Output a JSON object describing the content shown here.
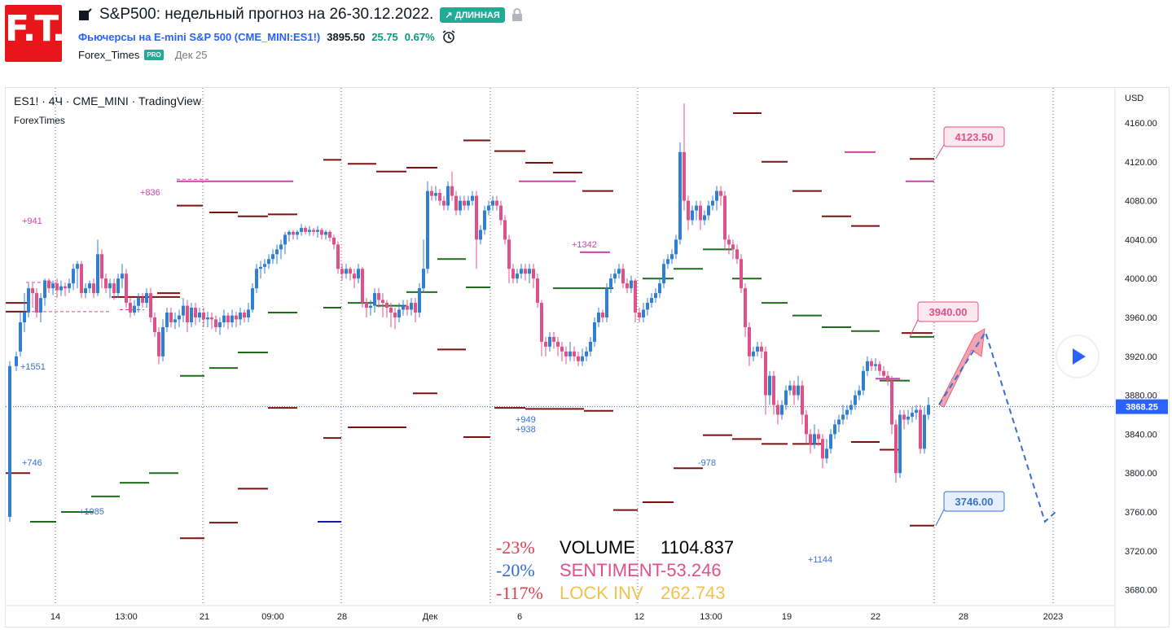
{
  "header": {
    "logo_text": "F.T.",
    "title": "S&P500: недельный прогноз на 26-30.12.2022.",
    "badge": "↗ ДЛИННАЯ",
    "instrument": "Фьючерсы на E-mini S&P 500 (CME_MINI:ES1!)",
    "price": "3895.50",
    "change": "25.75",
    "change_pct": "0.67%",
    "author": "Forex_Times",
    "author_badge": "PRO",
    "date": "Дек 25"
  },
  "chart_data": {
    "type": "candlestick",
    "title": "ES1! · 4Ч · CME_MINI · TradingView",
    "subtitle": "ForexTimes",
    "currency": "USD",
    "y_ticks": [
      "4160.00",
      "4120.00",
      "4080.00",
      "4040.00",
      "4000.00",
      "3960.00",
      "3920.00",
      "3880.00",
      "3840.00",
      "3800.00",
      "3760.00",
      "3720.00",
      "3680.00"
    ],
    "x_ticks": [
      "14",
      "13:00",
      "21",
      "09:00",
      "28",
      "Дек",
      "6",
      "12",
      "13:00",
      "19",
      "22",
      "28",
      "2023"
    ],
    "last_price_label": "3868.25",
    "target_labels": [
      "4123.50",
      "3940.00",
      "3746.00"
    ],
    "volume_annotations": [
      "+941",
      "+836",
      "+1551",
      "+746",
      "+1085",
      "+1342",
      "+949",
      "+938",
      "-978",
      "+1144"
    ],
    "stats": [
      {
        "pct": "-23%",
        "name": "VOLUME",
        "value": "1104.837",
        "pct_color": "#e03d4f",
        "name_color": "#000000",
        "value_color": "#000000"
      },
      {
        "pct": "-20%",
        "name": "SENTIMENT",
        "value": "-53.246",
        "pct_color": "#2f6bd6",
        "name_color": "#e0508a",
        "value_color": "#e0508a"
      },
      {
        "pct": "-117%",
        "name": "LOCK INV",
        "value": "262.743",
        "pct_color": "#e03d4f",
        "name_color": "#f2c24d",
        "value_color": "#f2c24d"
      }
    ],
    "colors": {
      "up": "#2f7fd3",
      "down": "#e0508a",
      "support": "#1e6b1e",
      "resistance": "#7b1212",
      "magenta": "#cc44aa",
      "target_pink": "#f4a3b0",
      "target_blue": "#3a6fd0"
    }
  }
}
